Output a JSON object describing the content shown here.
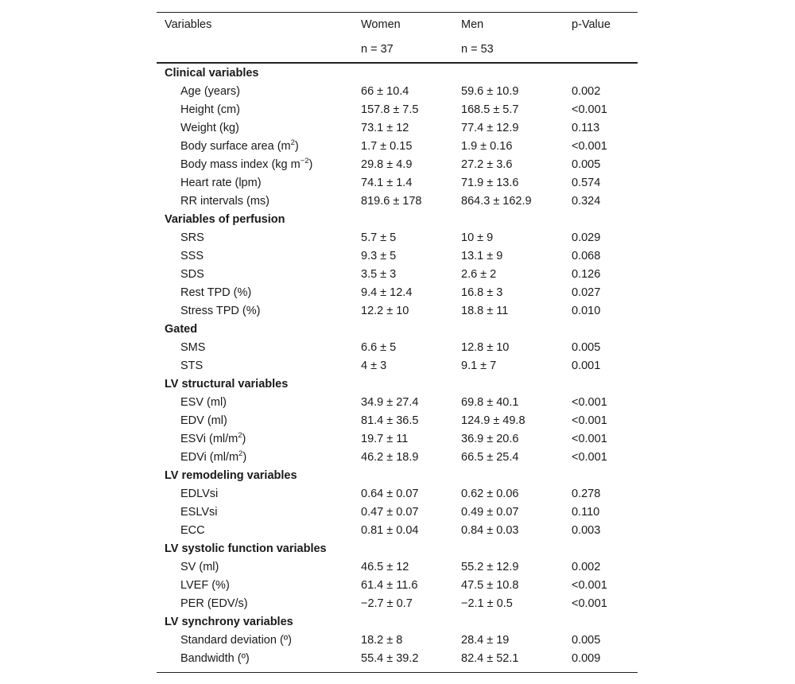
{
  "header": {
    "columns": [
      "Variables",
      "Women",
      "Men",
      "p-Value"
    ],
    "subheader": [
      "",
      "n = 37",
      "n = 53",
      ""
    ]
  },
  "groups": [
    {
      "title": "Clinical variables",
      "rows": [
        {
          "label": "Age (years)",
          "women": "66 ± 10.4",
          "men": "59.6 ± 10.9",
          "p": "0.002"
        },
        {
          "label": "Height (cm)",
          "women": "157.8 ± 7.5",
          "men": "168.5 ± 5.7",
          "p": "<0.001"
        },
        {
          "label": "Weight (kg)",
          "women": "73.1 ± 12",
          "men": "77.4 ± 12.9",
          "p": "0.113"
        },
        {
          "label": "Body surface area (m",
          "sup": "2",
          "after": ")",
          "women": "1.7 ± 0.15",
          "men": "1.9 ± 0.16",
          "p": "<0.001"
        },
        {
          "label": "Body mass index (kg m",
          "sup": "−2",
          "after": ")",
          "women": "29.8 ± 4.9",
          "men": "27.2 ± 3.6",
          "p": "0.005"
        },
        {
          "label": "Heart rate (lpm)",
          "women": "74.1 ± 1.4",
          "men": "71.9 ± 13.6",
          "p": "0.574"
        },
        {
          "label": "RR intervals (ms)",
          "women": "819.6 ± 178",
          "men": "864.3 ± 162.9",
          "p": "0.324"
        }
      ]
    },
    {
      "title": "Variables of perfusion",
      "rows": [
        {
          "label": "SRS",
          "women": "5.7 ± 5",
          "men": "10 ± 9",
          "p": "0.029"
        },
        {
          "label": "SSS",
          "women": "9.3 ± 5",
          "men": "13.1 ± 9",
          "p": "0.068"
        },
        {
          "label": "SDS",
          "women": "3.5 ± 3",
          "men": "2.6 ± 2",
          "p": "0.126"
        },
        {
          "label": "Rest TPD (%)",
          "women": "9.4 ± 12.4",
          "men": "16.8 ± 3",
          "p": "0.027"
        },
        {
          "label": "Stress TPD (%)",
          "women": "12.2 ± 10",
          "men": "18.8 ± 11",
          "p": "0.010"
        }
      ]
    },
    {
      "title": "Gated",
      "rows": [
        {
          "label": "SMS",
          "women": "6.6 ± 5",
          "men": "12.8 ± 10",
          "p": "0.005"
        },
        {
          "label": "STS",
          "women": "4 ± 3",
          "men": "9.1 ± 7",
          "p": "0.001"
        }
      ]
    },
    {
      "title": "LV structural variables",
      "rows": [
        {
          "label": "ESV (ml)",
          "women": "34.9 ± 27.4",
          "men": "69.8 ± 40.1",
          "p": "<0.001"
        },
        {
          "label": "EDV (ml)",
          "women": "81.4 ± 36.5",
          "men": "124.9 ± 49.8",
          "p": "<0.001"
        },
        {
          "label": "ESVi (ml/m",
          "sup": "2",
          "after": ")",
          "women": "19.7 ± 11",
          "men": "36.9 ± 20.6",
          "p": "<0.001"
        },
        {
          "label": "EDVi (ml/m",
          "sup": "2",
          "after": ")",
          "women": "46.2 ± 18.9",
          "men": "66.5 ± 25.4",
          "p": "<0.001"
        }
      ]
    },
    {
      "title": "LV remodeling variables",
      "rows": [
        {
          "label": "EDLVsi",
          "women": "0.64 ± 0.07",
          "men": "0.62 ± 0.06",
          "p": "0.278"
        },
        {
          "label": "ESLVsi",
          "women": "0.47 ± 0.07",
          "men": "0.49 ± 0.07",
          "p": "0.110"
        },
        {
          "label": "ECC",
          "women": "0.81 ± 0.04",
          "men": "0.84 ± 0.03",
          "p": "0.003"
        }
      ]
    },
    {
      "title": "LV systolic function variables",
      "rows": [
        {
          "label": "SV (ml)",
          "women": "46.5 ± 12",
          "men": "55.2 ± 12.9",
          "p": "0.002"
        },
        {
          "label": "LVEF (%)",
          "women": "61.4 ± 11.6",
          "men": "47.5 ± 10.8",
          "p": "<0.001"
        },
        {
          "label": "PER (EDV/s)",
          "women": "−2.7 ± 0.7",
          "men": "−2.1 ± 0.5",
          "p": "<0.001"
        }
      ]
    },
    {
      "title": "LV synchrony variables",
      "rows": [
        {
          "label": "Standard deviation (º)",
          "women": "18.2 ± 8",
          "men": "28.4 ± 19",
          "p": "0.005"
        },
        {
          "label": "Bandwidth (º)",
          "women": "55.4 ± 39.2",
          "men": "82.4 ± 52.1",
          "p": "0.009"
        }
      ]
    }
  ]
}
